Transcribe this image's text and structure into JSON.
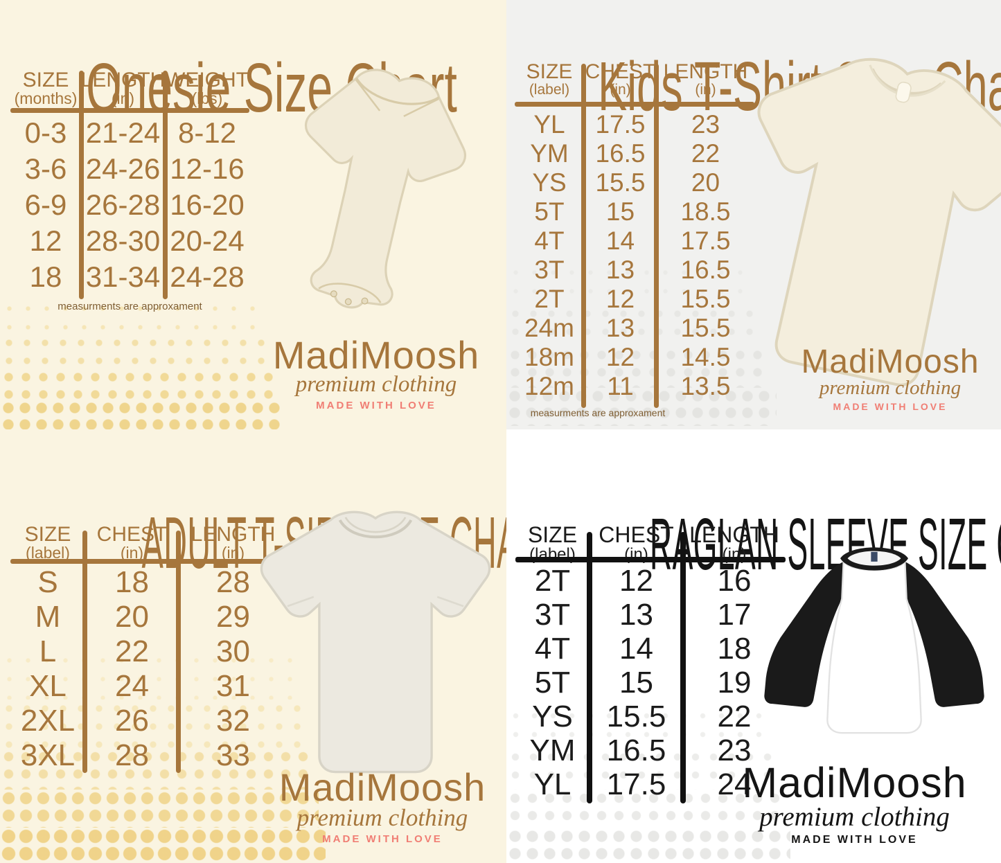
{
  "brand": {
    "name": "MadiMoosh",
    "tagline": "premium clothing",
    "love": "MADE WITH LOVE"
  },
  "colors": {
    "brown_text": "#A6763C",
    "black_text": "#1B1B1B",
    "salmon_love": "#F07E74",
    "cream_background": "#FAF4E1",
    "gray_background": "#F1F1EF",
    "white_background": "#FFFFFF",
    "dot_yellow": "#EFD285",
    "dot_gray": "#E6E6E3"
  },
  "chart_data": [
    {
      "type": "table",
      "id": "onesie",
      "title": "Onesie Size Chart",
      "note": "measurments are approxament",
      "columns": [
        {
          "label": "SIZE",
          "unit": "(months)"
        },
        {
          "label": "LENGTH",
          "unit": "(in)"
        },
        {
          "label": "WEIGHT",
          "unit": "(lbs)"
        }
      ],
      "rows": [
        [
          "0-3",
          "21-24",
          "8-12"
        ],
        [
          "3-6",
          "24-26",
          "12-16"
        ],
        [
          "6-9",
          "26-28",
          "16-20"
        ],
        [
          "12",
          "28-30",
          "20-24"
        ],
        [
          "18",
          "31-34",
          "24-28"
        ]
      ]
    },
    {
      "type": "table",
      "id": "kids-tshirt",
      "title": "Kids T-Shirt Size Chart",
      "note": "measurments are approxament",
      "columns": [
        {
          "label": "SIZE",
          "unit": "(label)"
        },
        {
          "label": "CHEST",
          "unit": "(in)"
        },
        {
          "label": "LENGTH",
          "unit": "(in)"
        }
      ],
      "rows": [
        [
          "YL",
          "17.5",
          "23"
        ],
        [
          "YM",
          "16.5",
          "22"
        ],
        [
          "YS",
          "15.5",
          "20"
        ],
        [
          "5T",
          "15",
          "18.5"
        ],
        [
          "4T",
          "14",
          "17.5"
        ],
        [
          "3T",
          "13",
          "16.5"
        ],
        [
          "2T",
          "12",
          "15.5"
        ],
        [
          "24m",
          "13",
          "15.5"
        ],
        [
          "18m",
          "12",
          "14.5"
        ],
        [
          "12m",
          "11",
          "13.5"
        ]
      ]
    },
    {
      "type": "table",
      "id": "adult-tshirt",
      "title": "ADULT T-SIRT SIZE CHART",
      "columns": [
        {
          "label": "SIZE",
          "unit": "(label)"
        },
        {
          "label": "CHEST",
          "unit": "(in)"
        },
        {
          "label": "LENGTH",
          "unit": "(in)"
        }
      ],
      "rows": [
        [
          "S",
          "18",
          "28"
        ],
        [
          "M",
          "20",
          "29"
        ],
        [
          "L",
          "22",
          "30"
        ],
        [
          "XL",
          "24",
          "31"
        ],
        [
          "2XL",
          "26",
          "32"
        ],
        [
          "3XL",
          "28",
          "33"
        ]
      ]
    },
    {
      "type": "table",
      "id": "raglan-sleeve",
      "title": "RAGLAN SLEEVE SIZE CHART",
      "columns": [
        {
          "label": "SIZE",
          "unit": "(label)"
        },
        {
          "label": "CHEST",
          "unit": "(in)"
        },
        {
          "label": "LENGTH",
          "unit": "(in)"
        }
      ],
      "rows": [
        [
          "2T",
          "12",
          "16"
        ],
        [
          "3T",
          "13",
          "17"
        ],
        [
          "4T",
          "14",
          "18"
        ],
        [
          "5T",
          "15",
          "19"
        ],
        [
          "YS",
          "15.5",
          "22"
        ],
        [
          "YM",
          "16.5",
          "23"
        ],
        [
          "YL",
          "17.5",
          "24"
        ]
      ]
    }
  ]
}
